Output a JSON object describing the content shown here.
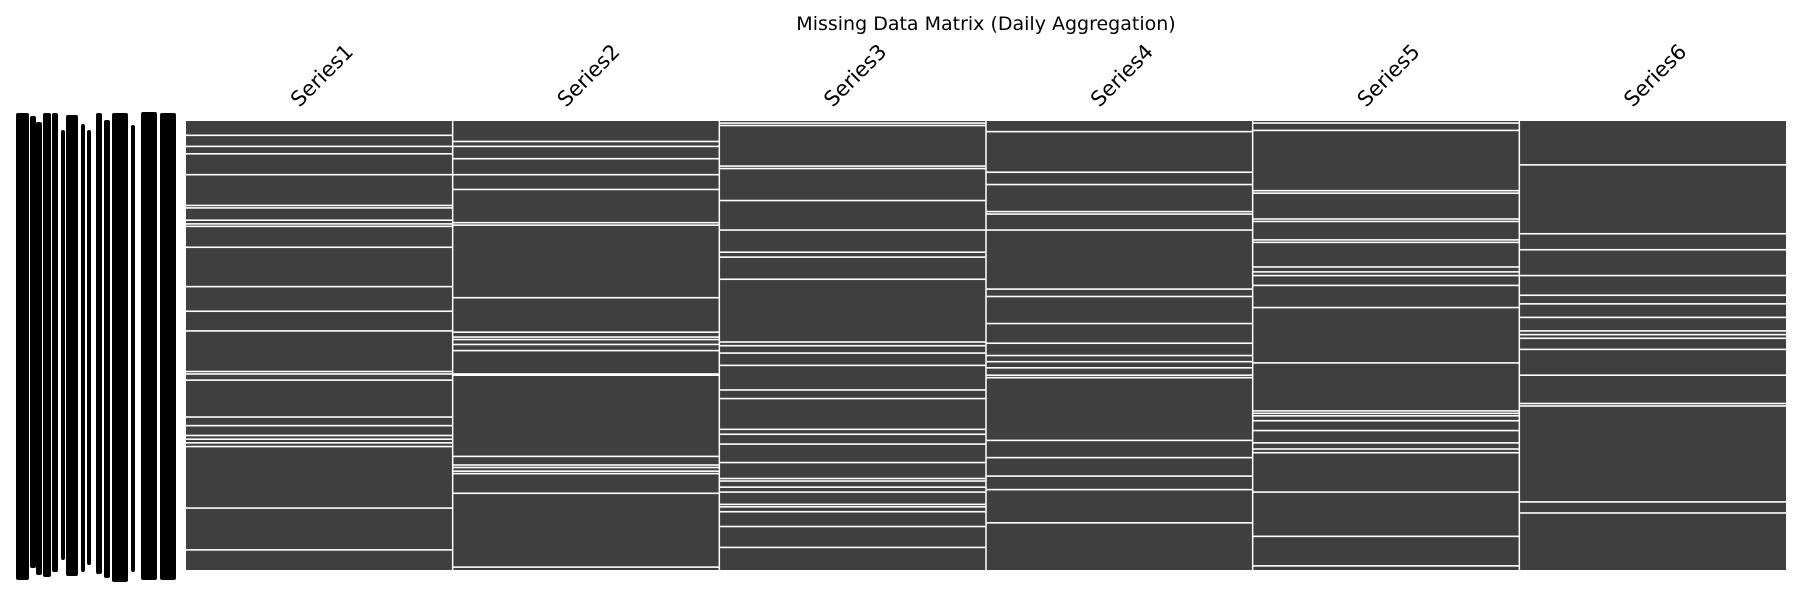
{
  "chart_data": {
    "type": "heatmap",
    "title": "Missing Data Matrix (Daily Aggregation)",
    "columns": [
      "Series1",
      "Series2",
      "Series3",
      "Series4",
      "Series5",
      "Series6"
    ],
    "n_rows": 365,
    "present_color": "#3f3f3f",
    "missing_color": "#ffffff",
    "missing_rows": [
      [
        11,
        20,
        26,
        43,
        68,
        70,
        80,
        83,
        85,
        102,
        134,
        154,
        170,
        203,
        205,
        210,
        240,
        247,
        255,
        258,
        261,
        264,
        314,
        348
      ],
      [
        16,
        20,
        30,
        43,
        55,
        82,
        84,
        143,
        171,
        175,
        177,
        181,
        186,
        205,
        206,
        272,
        279,
        281,
        284,
        286,
        302,
        362
      ],
      [
        1,
        3,
        36,
        38,
        64,
        88,
        106,
        110,
        128,
        179,
        182,
        188,
        198,
        218,
        225,
        250,
        254,
        262,
        277,
        290,
        292,
        297,
        301,
        311,
        313,
        317,
        329,
        346
      ],
      [
        8,
        41,
        51,
        73,
        75,
        88,
        136,
        142,
        164,
        180,
        190,
        195,
        200,
        206,
        208,
        259,
        273,
        288,
        299,
        326
      ],
      [
        1,
        7,
        56,
        58,
        79,
        81,
        96,
        98,
        118,
        122,
        125,
        133,
        151,
        196,
        235,
        237,
        239,
        243,
        251,
        261,
        266,
        269,
        301,
        337,
        361
      ],
      [
        35,
        91,
        104,
        125,
        141,
        148,
        159,
        170,
        173,
        176,
        185,
        206,
        229,
        231,
        309,
        318
      ]
    ]
  }
}
